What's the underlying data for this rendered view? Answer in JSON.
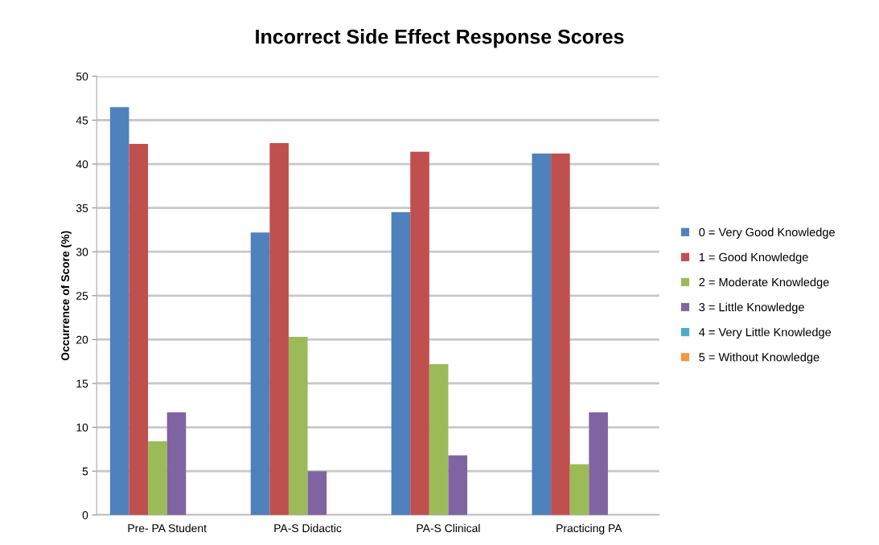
{
  "chart_data": {
    "type": "bar",
    "title": "Incorrect Side Effect Response Scores",
    "ylabel": "Occurrence of Score (%)",
    "categories": [
      "Pre- PA Student",
      "PA-S Didactic",
      "PA-S Clinical",
      "Practicing PA"
    ],
    "series": [
      {
        "name": "0 = Very Good Knowledge",
        "color": "#4f81bd",
        "values": [
          46.5,
          32.2,
          34.5,
          41.2
        ]
      },
      {
        "name": "1 = Good Knowledge",
        "color": "#c0504d",
        "values": [
          42.3,
          42.4,
          41.4,
          41.2
        ]
      },
      {
        "name": "2 = Moderate Knowledge",
        "color": "#9bbb59",
        "values": [
          8.4,
          20.3,
          17.2,
          5.8
        ]
      },
      {
        "name": "3 = Little Knowledge",
        "color": "#8064a2",
        "values": [
          11.7,
          5.0,
          6.8,
          11.7
        ]
      },
      {
        "name": "4 = Very Little Knowledge",
        "color": "#4bacc6",
        "values": [
          0,
          0,
          0,
          0
        ]
      },
      {
        "name": "5 = Without Knowledge",
        "color": "#f79646",
        "values": [
          0,
          0,
          0,
          0
        ]
      }
    ],
    "ylim": [
      0,
      50
    ],
    "yticks": [
      0,
      5,
      10,
      15,
      20,
      25,
      30,
      35,
      40,
      45,
      50
    ],
    "grid": "y",
    "legend": "right"
  }
}
